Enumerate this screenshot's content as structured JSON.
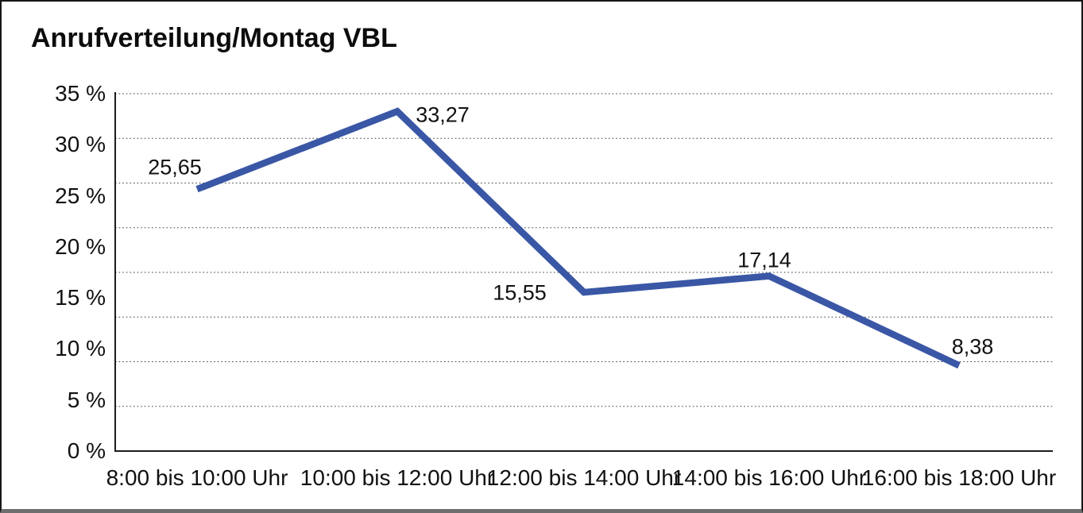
{
  "title": "Anrufverteilung/Montag VBL",
  "chart_data": {
    "type": "line",
    "title": "Anrufverteilung/Montag VBL",
    "categories": [
      "8:00 bis 10:00 Uhr",
      "10:00 bis 12:00 Uhr",
      "12:00 bis 14:00 Uhr",
      "14:00 bis 16:00 Uhr",
      "16:00 bis 18:00 Uhr"
    ],
    "values": [
      25.65,
      33.27,
      15.55,
      17.14,
      8.38
    ],
    "value_labels": [
      "25,65",
      "33,27",
      "15,55",
      "17,14",
      "8,38"
    ],
    "y_tick_labels": [
      "0 %",
      "5 %",
      "10 %",
      "15 %",
      "20 %",
      "25 %",
      "30 %",
      "35 %"
    ],
    "y_tick_step": 5,
    "ylim": [
      0,
      35
    ],
    "xlabel": "",
    "ylabel": "",
    "legend": "none",
    "grid": "horizontal-dotted",
    "gridline_intervals": 8,
    "line_color": "#3a57a6",
    "axis_color": "#1c1c1c",
    "gridline_color": "#3f3f3f",
    "text_color": "#111111"
  }
}
